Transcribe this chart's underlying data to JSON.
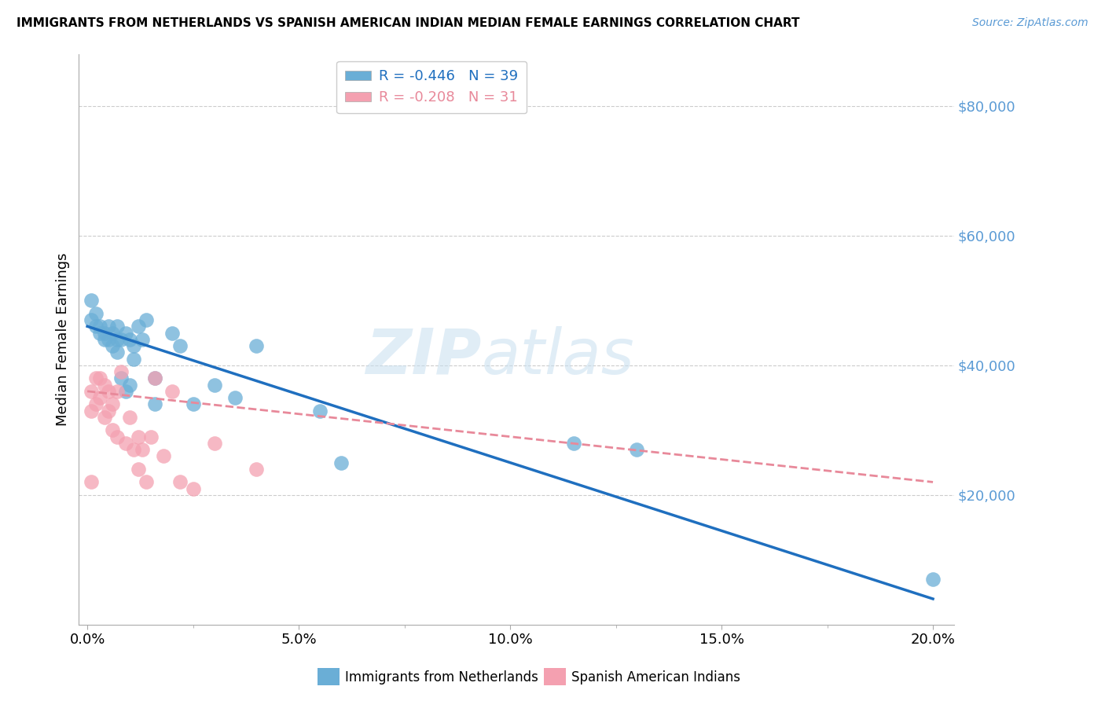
{
  "title": "IMMIGRANTS FROM NETHERLANDS VS SPANISH AMERICAN INDIAN MEDIAN FEMALE EARNINGS CORRELATION CHART",
  "source": "Source: ZipAtlas.com",
  "ylabel": "Median Female Earnings",
  "xlabel_ticks": [
    "0.0%",
    "",
    "",
    "",
    "",
    "5.0%",
    "",
    "",
    "",
    "",
    "10.0%",
    "",
    "",
    "",
    "",
    "15.0%",
    "",
    "",
    "",
    "",
    "20.0%"
  ],
  "xlabel_major_ticks": [
    0.0,
    0.05,
    0.1,
    0.15,
    0.2
  ],
  "xlabel_major_labels": [
    "0.0%",
    "5.0%",
    "10.0%",
    "15.0%",
    "20.0%"
  ],
  "ylabel_ticks": [
    "$80,000",
    "$60,000",
    "$40,000",
    "$20,000"
  ],
  "ylabel_vals": [
    80000,
    60000,
    40000,
    20000
  ],
  "grid_vals": [
    80000,
    60000,
    40000,
    20000
  ],
  "ylim": [
    0,
    88000
  ],
  "xlim": [
    -0.002,
    0.205
  ],
  "blue_R": "-0.446",
  "blue_N": "39",
  "pink_R": "-0.208",
  "pink_N": "31",
  "blue_color": "#6aaed6",
  "pink_color": "#f4a0b0",
  "blue_line_color": "#1f6fbf",
  "pink_line_color": "#e8899a",
  "watermark_zip": "ZIP",
  "watermark_atlas": "atlas",
  "legend_labels": [
    "Immigrants from Netherlands",
    "Spanish American Indians"
  ],
  "blue_scatter_x": [
    0.001,
    0.001,
    0.002,
    0.002,
    0.003,
    0.003,
    0.004,
    0.004,
    0.005,
    0.005,
    0.006,
    0.006,
    0.007,
    0.007,
    0.007,
    0.008,
    0.008,
    0.009,
    0.009,
    0.01,
    0.01,
    0.011,
    0.011,
    0.012,
    0.013,
    0.014,
    0.016,
    0.016,
    0.02,
    0.022,
    0.025,
    0.03,
    0.035,
    0.04,
    0.055,
    0.06,
    0.115,
    0.13,
    0.2
  ],
  "blue_scatter_y": [
    50000,
    47000,
    46000,
    48000,
    46000,
    45000,
    45000,
    44000,
    46000,
    44000,
    45000,
    43000,
    46000,
    44000,
    42000,
    44000,
    38000,
    45000,
    36000,
    44000,
    37000,
    43000,
    41000,
    46000,
    44000,
    47000,
    38000,
    34000,
    45000,
    43000,
    34000,
    37000,
    35000,
    43000,
    33000,
    25000,
    28000,
    27000,
    7000
  ],
  "pink_scatter_x": [
    0.001,
    0.001,
    0.001,
    0.002,
    0.002,
    0.003,
    0.003,
    0.004,
    0.004,
    0.005,
    0.005,
    0.006,
    0.006,
    0.007,
    0.007,
    0.008,
    0.009,
    0.01,
    0.011,
    0.012,
    0.012,
    0.013,
    0.014,
    0.015,
    0.016,
    0.018,
    0.02,
    0.022,
    0.025,
    0.03,
    0.04
  ],
  "pink_scatter_y": [
    36000,
    33000,
    22000,
    38000,
    34000,
    38000,
    35000,
    37000,
    32000,
    36000,
    33000,
    34000,
    30000,
    36000,
    29000,
    39000,
    28000,
    32000,
    27000,
    29000,
    24000,
    27000,
    22000,
    29000,
    38000,
    26000,
    36000,
    22000,
    21000,
    28000,
    24000
  ],
  "blue_trend_x": [
    0.0,
    0.2
  ],
  "blue_trend_y": [
    46000,
    4000
  ],
  "pink_trend_x": [
    0.0,
    0.2
  ],
  "pink_trend_y": [
    36000,
    22000
  ]
}
